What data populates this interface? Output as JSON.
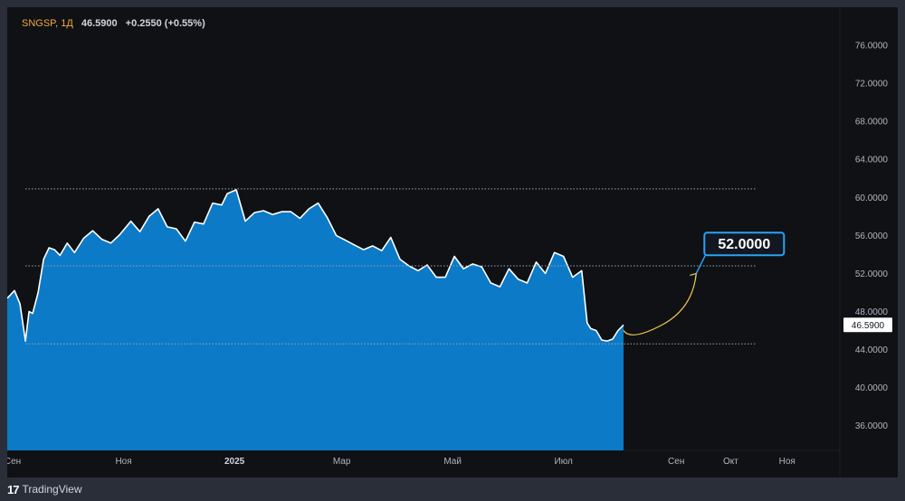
{
  "header": {
    "symbol": "SNGSP, 1Д",
    "last": "46.5900",
    "change": "+0.2550 (+0.55%)"
  },
  "price_label": "46.5900",
  "target_label": "52.0000",
  "brand": {
    "name": "TradingView",
    "glyph": "17"
  },
  "colors": {
    "background": "#0f1115",
    "area_fill": "#0c7ac6",
    "line": "#ffffff",
    "target": "#2aa2f4",
    "arrow": "#f2c94c",
    "reference_line": "#9ea3ad"
  },
  "chart_data": {
    "type": "area",
    "title": "",
    "xlabel": "",
    "ylabel": "",
    "ylim": [
      33.4,
      80.0
    ],
    "y_ticks": [
      "36.0000",
      "40.0000",
      "44.0000",
      "48.0000",
      "52.0000",
      "56.0000",
      "60.0000",
      "64.0000",
      "68.0000",
      "72.0000",
      "76.0000"
    ],
    "x_ticks": [
      {
        "label": "Сен",
        "date": "2024-09-01"
      },
      {
        "label": "Ноя",
        "date": "2024-11-01"
      },
      {
        "label": "2025",
        "date": "2025-01-01",
        "bold": true
      },
      {
        "label": "Мар",
        "date": "2025-03-01"
      },
      {
        "label": "Май",
        "date": "2025-05-01"
      },
      {
        "label": "Июл",
        "date": "2025-07-01"
      },
      {
        "label": "Сен",
        "date": "2025-09-01"
      },
      {
        "label": "Окт",
        "date": "2025-10-01"
      },
      {
        "label": "Ноя",
        "date": "2025-11-01"
      }
    ],
    "x_range": [
      "2024-08-29",
      "2025-11-30"
    ],
    "reference_lines": [
      60.9,
      52.8,
      44.6
    ],
    "reference_end": "2025-10-15",
    "target": {
      "from": "2025-08-03",
      "from_value": 46.0,
      "to": "2025-09-12",
      "to_value": 52.0
    },
    "series": [
      {
        "x": [
          "2024-08-29",
          "2024-09-02",
          "2024-09-05",
          "2024-09-08",
          "2024-09-10",
          "2024-09-12",
          "2024-09-15",
          "2024-09-18",
          "2024-09-21",
          "2024-09-24",
          "2024-09-27",
          "2024-10-01",
          "2024-10-05",
          "2024-10-10",
          "2024-10-15",
          "2024-10-20",
          "2024-10-25",
          "2024-10-30",
          "2024-11-05",
          "2024-11-10",
          "2024-11-15",
          "2024-11-20",
          "2024-11-25",
          "2024-11-30",
          "2024-12-05",
          "2024-12-10",
          "2024-12-15",
          "2024-12-20",
          "2024-12-25",
          "2024-12-28",
          "2025-01-02",
          "2025-01-07",
          "2025-01-12",
          "2025-01-17",
          "2025-01-22",
          "2025-01-27",
          "2025-02-01",
          "2025-02-06",
          "2025-02-11",
          "2025-02-16",
          "2025-02-21",
          "2025-02-26",
          "2025-03-03",
          "2025-03-08",
          "2025-03-13",
          "2025-03-18",
          "2025-03-23",
          "2025-03-28",
          "2025-04-02",
          "2025-04-07",
          "2025-04-12",
          "2025-04-17",
          "2025-04-22",
          "2025-04-27",
          "2025-05-02",
          "2025-05-07",
          "2025-05-12",
          "2025-05-17",
          "2025-05-22",
          "2025-05-27",
          "2025-06-01",
          "2025-06-06",
          "2025-06-11",
          "2025-06-16",
          "2025-06-21",
          "2025-06-26",
          "2025-07-01",
          "2025-07-06",
          "2025-07-11",
          "2025-07-14",
          "2025-07-16",
          "2025-07-19",
          "2025-07-22",
          "2025-07-25",
          "2025-07-28",
          "2025-07-31",
          "2025-08-03"
        ],
        "values": [
          49.4,
          50.2,
          48.8,
          44.9,
          48.0,
          47.8,
          50.0,
          53.5,
          54.7,
          54.5,
          53.9,
          55.2,
          54.2,
          55.7,
          56.5,
          55.6,
          55.2,
          56.1,
          57.5,
          56.4,
          58.0,
          58.8,
          56.9,
          56.7,
          55.4,
          57.4,
          57.2,
          59.4,
          59.2,
          60.4,
          60.8,
          57.5,
          58.4,
          58.6,
          58.2,
          58.5,
          58.5,
          57.8,
          58.8,
          59.4,
          57.9,
          56.0,
          55.5,
          55.0,
          54.5,
          54.9,
          54.4,
          55.8,
          53.5,
          52.8,
          52.3,
          52.9,
          51.6,
          51.6,
          53.8,
          52.5,
          53.0,
          52.7,
          51.0,
          50.6,
          52.5,
          51.4,
          51.0,
          53.2,
          52.0,
          54.2,
          53.8,
          51.6,
          52.3,
          46.8,
          46.2,
          46.0,
          45.0,
          44.9,
          45.1,
          46.0,
          46.59
        ]
      }
    ]
  }
}
